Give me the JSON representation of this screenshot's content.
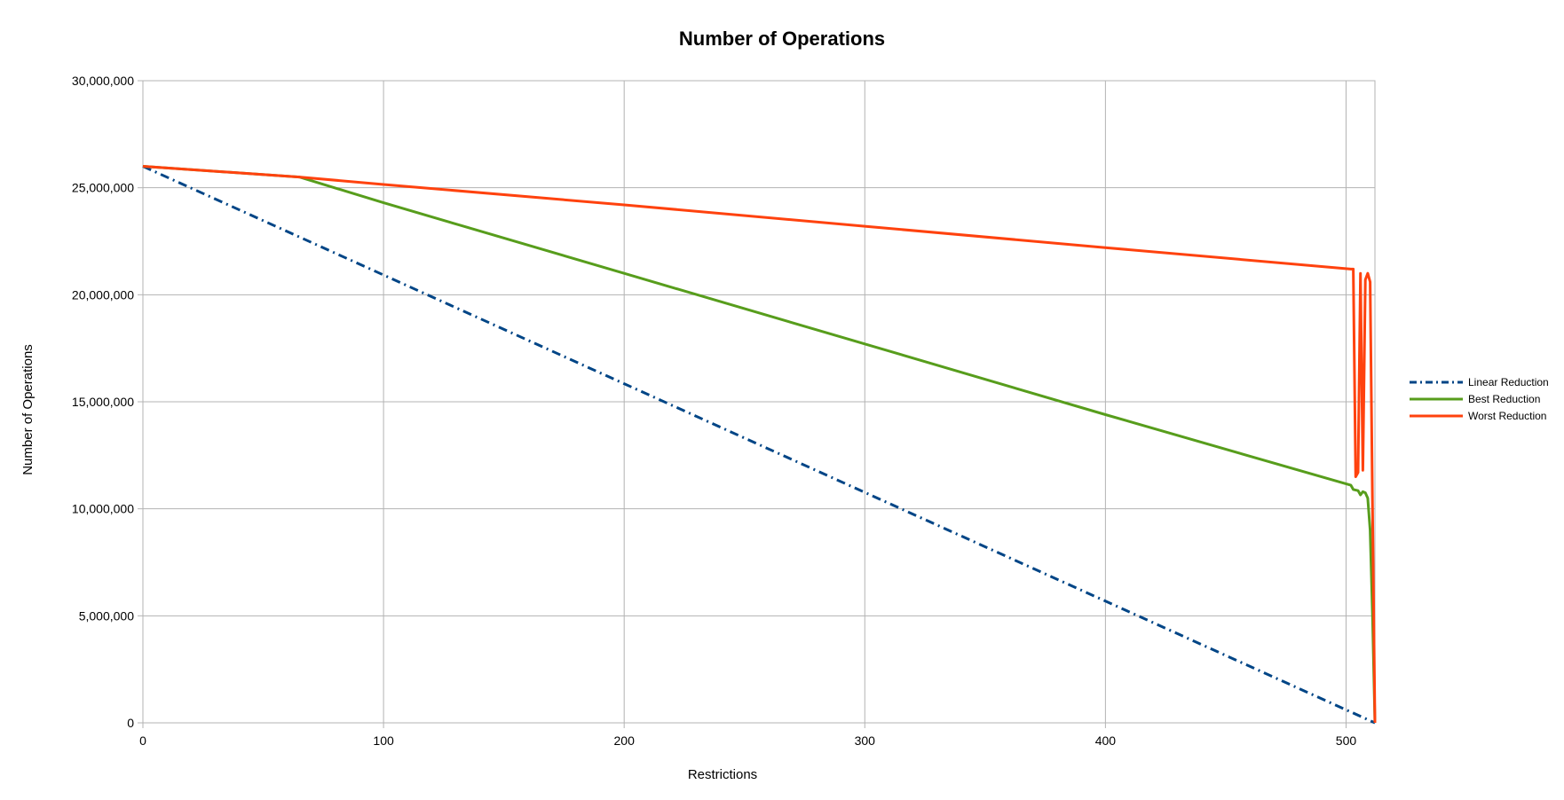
{
  "chart_data": {
    "type": "line",
    "title": "Number of Operations",
    "xlabel": "Restrictions",
    "ylabel": "Number of Operations",
    "xlim": [
      0,
      512
    ],
    "ylim": [
      0,
      30000000
    ],
    "xticks": [
      0,
      100,
      200,
      300,
      400,
      500
    ],
    "yticks": [
      0,
      5000000,
      10000000,
      15000000,
      20000000,
      25000000,
      30000000
    ],
    "xtick_labels": [
      "0",
      "100",
      "200",
      "300",
      "400",
      "500"
    ],
    "ytick_labels": [
      "0",
      "5,000,000",
      "10,000,000",
      "15,000,000",
      "20,000,000",
      "25,000,000",
      "30,000,000"
    ],
    "grid": true,
    "legend_position": "right",
    "series": [
      {
        "name": "Linear Reduction",
        "color": "#004586",
        "style": "dash-dot",
        "x": [
          0,
          512
        ],
        "y": [
          26000000,
          0
        ]
      },
      {
        "name": "Best Reduction",
        "color": "#579d1c",
        "style": "solid",
        "x": [
          0,
          65,
          100,
          200,
          300,
          400,
          502,
          503,
          505,
          506,
          507,
          508,
          509,
          510,
          511,
          512
        ],
        "y": [
          26000000,
          25500000,
          24300000,
          21000000,
          17700000,
          14400000,
          11100000,
          10900000,
          10850000,
          10650000,
          10800000,
          10750000,
          10500000,
          9000000,
          5000000,
          0
        ]
      },
      {
        "name": "Worst Reduction",
        "color": "#ff420e",
        "style": "solid",
        "x": [
          0,
          65,
          100,
          200,
          300,
          400,
          502,
          503,
          504,
          505,
          506,
          507,
          508,
          509,
          510,
          511,
          512
        ],
        "y": [
          26000000,
          25500000,
          25150000,
          24200000,
          23200000,
          22200000,
          21200000,
          21200000,
          11500000,
          11700000,
          21000000,
          11800000,
          20700000,
          21000000,
          20600000,
          10000000,
          0
        ]
      }
    ]
  }
}
